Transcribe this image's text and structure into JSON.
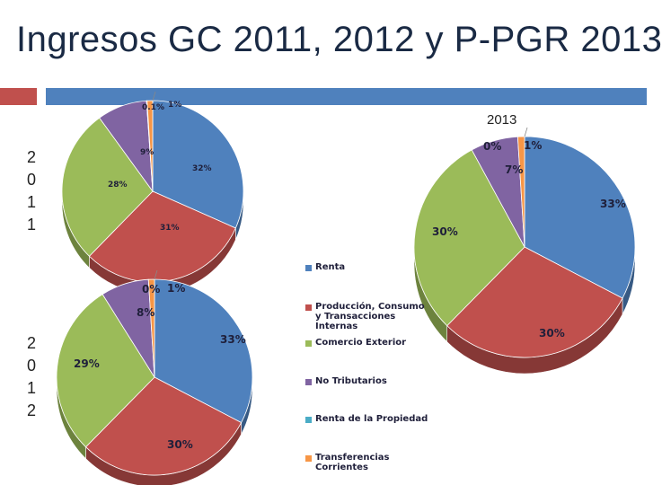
{
  "title": "Ingresos GC 2011, 2012 y P-PGR 2013",
  "year_2011": [
    "2",
    "0",
    "1",
    "1"
  ],
  "year_2012": [
    "2",
    "0",
    "1",
    "2"
  ],
  "label_2013": "2013",
  "colors": {
    "renta": "#4f81bd",
    "produccion": "#c0504d",
    "comercio": "#9bbb59",
    "no_tributarios": "#8064a2",
    "renta_propiedad": "#4bacc6",
    "transferencias": "#f79646",
    "deco_red": "#c0504d",
    "deco_blue": "#4f81bd"
  },
  "chart_data": [
    {
      "type": "pie",
      "id": "2011",
      "title": "",
      "slices": [
        {
          "name": "Renta",
          "value": 32,
          "label": "32%"
        },
        {
          "name": "Producción, Consumo y Transacciones Internas",
          "value": 31,
          "label": "31%"
        },
        {
          "name": "Comercio Exterior",
          "value": 28,
          "label": "28%"
        },
        {
          "name": "No Tributarios",
          "value": 9,
          "label": "9%"
        },
        {
          "name": "Renta de la Propiedad",
          "value": 0.1,
          "label": "0.1%"
        },
        {
          "name": "Transferencias Corrientes",
          "value": 1,
          "label": "1%"
        }
      ]
    },
    {
      "type": "pie",
      "id": "2012",
      "title": "",
      "slices": [
        {
          "name": "Renta",
          "value": 33,
          "label": "33%"
        },
        {
          "name": "Producción, Consumo y Transacciones Internas",
          "value": 30,
          "label": "30%"
        },
        {
          "name": "Comercio Exterior",
          "value": 29,
          "label": "29%"
        },
        {
          "name": "No Tributarios",
          "value": 8,
          "label": "8%"
        },
        {
          "name": "Renta de la Propiedad",
          "value": 0,
          "label": "0%"
        },
        {
          "name": "Transferencias Corrientes",
          "value": 1,
          "label": "1%"
        }
      ]
    },
    {
      "type": "pie",
      "id": "2013",
      "title": "2013",
      "slices": [
        {
          "name": "Renta",
          "value": 33,
          "label": "33%"
        },
        {
          "name": "Producción, Consumo y Transacciones Internas",
          "value": 30,
          "label": "30%"
        },
        {
          "name": "Comercio Exterior",
          "value": 30,
          "label": "30%"
        },
        {
          "name": "No Tributarios",
          "value": 7,
          "label": "7%"
        },
        {
          "name": "Renta de la Propiedad",
          "value": 0,
          "label": "0%"
        },
        {
          "name": "Transferencias Corrientes",
          "value": 1,
          "label": "1%"
        }
      ]
    }
  ],
  "legend": [
    {
      "label": "Renta",
      "color_key": "renta"
    },
    {
      "label": "Producción, Consumo y Transacciones Internas",
      "color_key": "produccion"
    },
    {
      "label": "Comercio Exterior",
      "color_key": "comercio"
    },
    {
      "label": "No Tributarios",
      "color_key": "no_tributarios"
    },
    {
      "label": "Renta de la Propiedad",
      "color_key": "renta_propiedad"
    },
    {
      "label": "Transferencias Corrientes",
      "color_key": "transferencias"
    }
  ]
}
